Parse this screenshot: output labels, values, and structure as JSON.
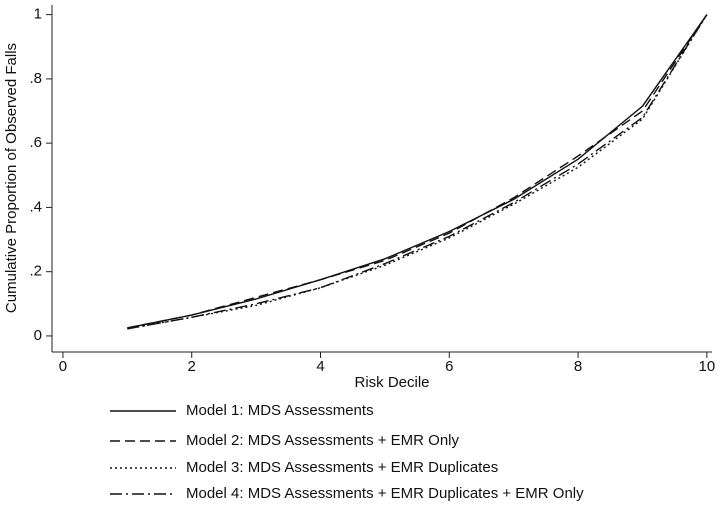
{
  "chart_data": {
    "type": "line",
    "x_label": "Risk Decile",
    "y_label": "Cumulative Proportion of Observed Falls",
    "x": [
      1,
      2,
      3,
      4,
      5,
      6,
      7,
      8,
      9,
      10
    ],
    "series": [
      {
        "name": "Model 1: MDS Assessments",
        "color": "#111111",
        "line_style": "solid",
        "values": [
          0.025,
          0.065,
          0.115,
          0.175,
          0.24,
          0.325,
          0.425,
          0.55,
          0.715,
          1
        ]
      },
      {
        "name": "Model 2: MDS Assessments + EMR Only",
        "color": "#111111",
        "line_style": "dashed",
        "values": [
          0.025,
          0.065,
          0.12,
          0.175,
          0.235,
          0.32,
          0.43,
          0.56,
          0.7,
          1
        ]
      },
      {
        "name": "Model 3: MDS Assessments + EMR Duplicates",
        "color": "#111111",
        "line_style": "dotted",
        "values": [
          0.022,
          0.058,
          0.095,
          0.15,
          0.22,
          0.305,
          0.41,
          0.525,
          0.675,
          1
        ]
      },
      {
        "name": "Model 4: MDS Assessments + EMR Duplicates + EMR Only",
        "color": "#111111",
        "line_style": "dashdot",
        "values": [
          0.022,
          0.058,
          0.1,
          0.15,
          0.225,
          0.31,
          0.415,
          0.535,
          0.68,
          1
        ]
      }
    ],
    "xlim": [
      -0.17,
      10.08
    ],
    "ylim": [
      -0.05,
      1.03
    ],
    "xticks": [
      0,
      2,
      4,
      6,
      8,
      10
    ],
    "yticks": [
      0,
      {
        "value": 0.2,
        "label": ".2"
      },
      {
        "value": 0.4,
        "label": ".4"
      },
      {
        "value": 0.6,
        "label": ".6"
      },
      {
        "value": 0.8,
        "label": ".8"
      },
      1
    ],
    "grid": false
  }
}
